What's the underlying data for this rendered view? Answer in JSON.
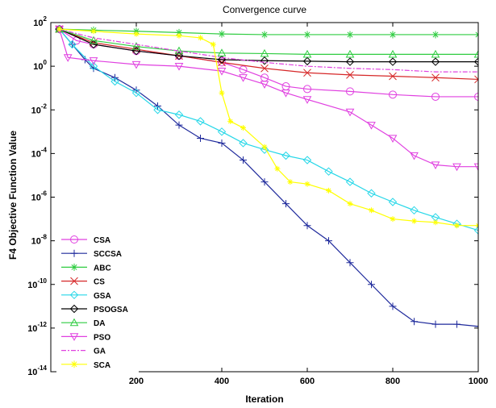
{
  "chart_data": {
    "type": "line",
    "title": "Convergence curve",
    "xlabel": "Iteration",
    "ylabel": "F4 Objective Function Value",
    "xlim": [
      0,
      1000
    ],
    "ylim": [
      1e-14,
      100
    ],
    "yscale": "log",
    "grid": false,
    "legend_position": "bottom-left",
    "x_ticks": [
      200,
      400,
      600,
      800,
      1000
    ],
    "y_ticks": [
      {
        "value": 1e-14,
        "base": "10",
        "exp": "-14"
      },
      {
        "value": 1e-12,
        "base": "10",
        "exp": "-12"
      },
      {
        "value": 1e-10,
        "base": "10",
        "exp": "-10"
      },
      {
        "value": 1e-08,
        "base": "10",
        "exp": "-8"
      },
      {
        "value": 1e-06,
        "base": "10",
        "exp": "-6"
      },
      {
        "value": 0.0001,
        "base": "10",
        "exp": "-4"
      },
      {
        "value": 0.01,
        "base": "10",
        "exp": "-2"
      },
      {
        "value": 1,
        "base": "10",
        "exp": "0"
      },
      {
        "value": 100,
        "base": "10",
        "exp": "2"
      }
    ],
    "series": [
      {
        "name": "CSA",
        "color": "#e040e0",
        "marker": "circle",
        "dash": "",
        "points": [
          [
            20,
            50
          ],
          [
            60,
            15
          ],
          [
            100,
            10
          ],
          [
            200,
            5
          ],
          [
            300,
            3
          ],
          [
            400,
            1.5
          ],
          [
            450,
            0.7
          ],
          [
            500,
            0.3
          ],
          [
            550,
            0.12
          ],
          [
            600,
            0.09
          ],
          [
            700,
            0.07
          ],
          [
            800,
            0.05
          ],
          [
            900,
            0.04
          ],
          [
            1000,
            0.04
          ]
        ]
      },
      {
        "name": "SCCSA",
        "color": "#1f2a9c",
        "marker": "plus",
        "dash": "",
        "points": [
          [
            20,
            50
          ],
          [
            50,
            10
          ],
          [
            80,
            2
          ],
          [
            100,
            0.8
          ],
          [
            150,
            0.3
          ],
          [
            200,
            0.08
          ],
          [
            250,
            0.015
          ],
          [
            300,
            0.002
          ],
          [
            350,
            0.0005
          ],
          [
            400,
            0.0003
          ],
          [
            450,
            5e-05
          ],
          [
            500,
            5e-06
          ],
          [
            550,
            5e-07
          ],
          [
            600,
            5e-08
          ],
          [
            650,
            1e-08
          ],
          [
            700,
            1e-09
          ],
          [
            750,
            1e-10
          ],
          [
            800,
            1e-11
          ],
          [
            850,
            2e-12
          ],
          [
            900,
            1.5e-12
          ],
          [
            950,
            1.5e-12
          ],
          [
            1000,
            1.2e-12
          ]
        ]
      },
      {
        "name": "ABC",
        "color": "#2ecc40",
        "marker": "star",
        "dash": "",
        "points": [
          [
            20,
            50
          ],
          [
            100,
            45
          ],
          [
            200,
            40
          ],
          [
            300,
            35
          ],
          [
            400,
            30
          ],
          [
            500,
            28
          ],
          [
            600,
            28
          ],
          [
            700,
            28
          ],
          [
            800,
            28
          ],
          [
            900,
            28
          ],
          [
            1000,
            28
          ]
        ]
      },
      {
        "name": "CS",
        "color": "#d62728",
        "marker": "x",
        "dash": "",
        "points": [
          [
            20,
            50
          ],
          [
            100,
            12
          ],
          [
            200,
            6
          ],
          [
            300,
            3
          ],
          [
            400,
            1.5
          ],
          [
            500,
            0.8
          ],
          [
            600,
            0.5
          ],
          [
            700,
            0.4
          ],
          [
            800,
            0.35
          ],
          [
            900,
            0.3
          ],
          [
            1000,
            0.25
          ]
        ]
      },
      {
        "name": "GSA",
        "color": "#26d7e8",
        "marker": "diamond",
        "dash": "",
        "points": [
          [
            20,
            50
          ],
          [
            50,
            10
          ],
          [
            100,
            1
          ],
          [
            150,
            0.2
          ],
          [
            200,
            0.06
          ],
          [
            250,
            0.01
          ],
          [
            300,
            0.006
          ],
          [
            350,
            0.003
          ],
          [
            400,
            0.001
          ],
          [
            450,
            0.0003
          ],
          [
            500,
            0.00015
          ],
          [
            550,
            8e-05
          ],
          [
            600,
            5e-05
          ],
          [
            650,
            1.5e-05
          ],
          [
            700,
            5e-06
          ],
          [
            750,
            1.5e-06
          ],
          [
            800,
            6e-07
          ],
          [
            850,
            2.5e-07
          ],
          [
            900,
            1.2e-07
          ],
          [
            950,
            6e-08
          ],
          [
            1000,
            3e-08
          ]
        ]
      },
      {
        "name": "PSOGSA",
        "color": "#000000",
        "marker": "diamond-open",
        "dash": "",
        "points": [
          [
            20,
            50
          ],
          [
            100,
            10
          ],
          [
            200,
            5
          ],
          [
            300,
            3
          ],
          [
            400,
            2
          ],
          [
            500,
            1.8
          ],
          [
            600,
            1.7
          ],
          [
            700,
            1.6
          ],
          [
            800,
            1.6
          ],
          [
            900,
            1.6
          ],
          [
            1000,
            1.6
          ]
        ]
      },
      {
        "name": "DA",
        "color": "#2ecc40",
        "marker": "triangle-up",
        "dash": "",
        "points": [
          [
            20,
            50
          ],
          [
            100,
            15
          ],
          [
            200,
            8
          ],
          [
            300,
            5
          ],
          [
            400,
            4
          ],
          [
            500,
            3.8
          ],
          [
            600,
            3.5
          ],
          [
            700,
            3.5
          ],
          [
            800,
            3.5
          ],
          [
            900,
            3.5
          ],
          [
            1000,
            3.5
          ]
        ]
      },
      {
        "name": "PSO",
        "color": "#e040e0",
        "marker": "triangle-down",
        "dash": "",
        "points": [
          [
            20,
            50
          ],
          [
            40,
            2.5
          ],
          [
            100,
            1.8
          ],
          [
            200,
            1.2
          ],
          [
            300,
            1.0
          ],
          [
            400,
            0.6
          ],
          [
            450,
            0.3
          ],
          [
            500,
            0.15
          ],
          [
            550,
            0.06
          ],
          [
            600,
            0.03
          ],
          [
            700,
            0.008
          ],
          [
            750,
            0.002
          ],
          [
            800,
            0.0005
          ],
          [
            850,
            8e-05
          ],
          [
            900,
            3e-05
          ],
          [
            950,
            2.5e-05
          ],
          [
            1000,
            2.5e-05
          ]
        ]
      },
      {
        "name": "GA",
        "color": "#e040e0",
        "marker": "",
        "dash": "6,2,2,2",
        "points": [
          [
            20,
            50
          ],
          [
            100,
            20
          ],
          [
            200,
            10
          ],
          [
            300,
            5
          ],
          [
            400,
            2.5
          ],
          [
            500,
            1.5
          ],
          [
            600,
            1.0
          ],
          [
            700,
            0.8
          ],
          [
            800,
            0.7
          ],
          [
            900,
            0.55
          ],
          [
            1000,
            0.55
          ]
        ]
      },
      {
        "name": "SCA",
        "color": "#ffff00",
        "marker": "star-small",
        "dash": "",
        "points": [
          [
            20,
            50
          ],
          [
            100,
            40
          ],
          [
            200,
            30
          ],
          [
            300,
            25
          ],
          [
            350,
            20
          ],
          [
            380,
            10
          ],
          [
            400,
            0.06
          ],
          [
            420,
            0.003
          ],
          [
            450,
            0.0015
          ],
          [
            500,
            0.0002
          ],
          [
            530,
            2e-05
          ],
          [
            560,
            5e-06
          ],
          [
            600,
            4e-06
          ],
          [
            650,
            2e-06
          ],
          [
            700,
            5e-07
          ],
          [
            750,
            2.5e-07
          ],
          [
            800,
            1e-07
          ],
          [
            850,
            8e-08
          ],
          [
            900,
            7e-08
          ],
          [
            950,
            5e-08
          ],
          [
            1000,
            5e-08
          ]
        ]
      }
    ]
  }
}
